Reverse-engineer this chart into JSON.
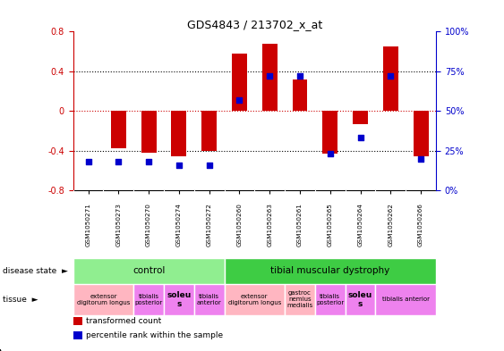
{
  "title": "GDS4843 / 213702_x_at",
  "samples": [
    "GSM1050271",
    "GSM1050273",
    "GSM1050270",
    "GSM1050274",
    "GSM1050272",
    "GSM1050260",
    "GSM1050263",
    "GSM1050261",
    "GSM1050265",
    "GSM1050264",
    "GSM1050262",
    "GSM1050266"
  ],
  "red_values": [
    0.0,
    -0.38,
    -0.42,
    -0.46,
    -0.4,
    0.58,
    0.68,
    0.32,
    -0.43,
    -0.13,
    0.65,
    -0.46
  ],
  "blue_values_pct": [
    18,
    18,
    18,
    16,
    16,
    57,
    72,
    72,
    23,
    33,
    72,
    20
  ],
  "ylim": [
    -0.8,
    0.8
  ],
  "right_ylim": [
    0,
    100
  ],
  "right_yticks": [
    0,
    25,
    50,
    75,
    100
  ],
  "right_yticklabels": [
    "0%",
    "25%",
    "50%",
    "75%",
    "100%"
  ],
  "yticks": [
    -0.8,
    -0.4,
    0.0,
    0.4,
    0.8
  ],
  "dotted_lines": [
    -0.4,
    0.4
  ],
  "red_dotted_line": 0.0,
  "disease_state_groups": [
    {
      "label": "control",
      "start": 0,
      "end": 5,
      "color": "#90EE90"
    },
    {
      "label": "tibial muscular dystrophy",
      "start": 5,
      "end": 12,
      "color": "#3ECC44"
    }
  ],
  "tissue_groups": [
    {
      "label": "extensor\ndigitorum longus",
      "cols": [
        0,
        1
      ],
      "color": "#FFB6C1"
    },
    {
      "label": "tibialis\nposterior",
      "cols": [
        2
      ],
      "color": "#EE82EE"
    },
    {
      "label": "soleu\ns",
      "cols": [
        3
      ],
      "color": "#EE82EE",
      "bold": true
    },
    {
      "label": "tibialis\nanterior",
      "cols": [
        4
      ],
      "color": "#EE82EE"
    },
    {
      "label": "extensor\ndigitorum longus",
      "cols": [
        5,
        6
      ],
      "color": "#FFB6C1"
    },
    {
      "label": "gastroc\nnemius\nmedialis",
      "cols": [
        7
      ],
      "color": "#FFB6C1"
    },
    {
      "label": "tibialis\nposterior",
      "cols": [
        8
      ],
      "color": "#EE82EE"
    },
    {
      "label": "soleu\ns",
      "cols": [
        9
      ],
      "color": "#EE82EE",
      "bold": true
    },
    {
      "label": "tibialis anterior",
      "cols": [
        10,
        11
      ],
      "color": "#EE82EE"
    }
  ],
  "bar_color": "#CC0000",
  "dot_color": "#0000CC",
  "bar_width": 0.5,
  "dot_size": 25,
  "background_color": "#ffffff",
  "xaxis_bg": "#D8D8D8",
  "label_fontsize": 7,
  "tick_fontsize": 6
}
